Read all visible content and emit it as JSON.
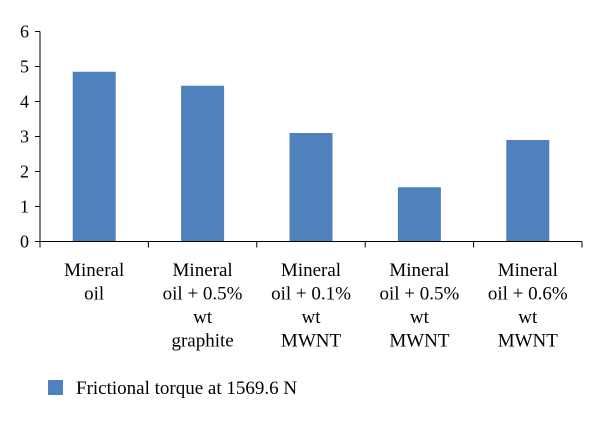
{
  "chart_data": {
    "type": "bar",
    "categories": [
      [
        "Mineral",
        "oil"
      ],
      [
        "Mineral",
        "oil + 0.5%",
        "wt",
        "graphite"
      ],
      [
        "Mineral",
        "oil + 0.1%",
        "wt",
        "MWNT"
      ],
      [
        "Mineral",
        "oil + 0.5%",
        "wt",
        "MWNT"
      ],
      [
        "Mineral",
        "oil + 0.6%",
        "wt",
        "MWNT"
      ]
    ],
    "series": [
      {
        "name": "Frictional torque at 1569.6 N",
        "values": [
          4.85,
          4.45,
          3.1,
          1.55,
          2.9
        ]
      }
    ],
    "yticks": [
      "0",
      "1",
      "2",
      "3",
      "4",
      "5",
      "6"
    ],
    "ylim": [
      0,
      6
    ],
    "grid": false,
    "legend_position": "bottom",
    "bar_color": "#4f81bd"
  }
}
